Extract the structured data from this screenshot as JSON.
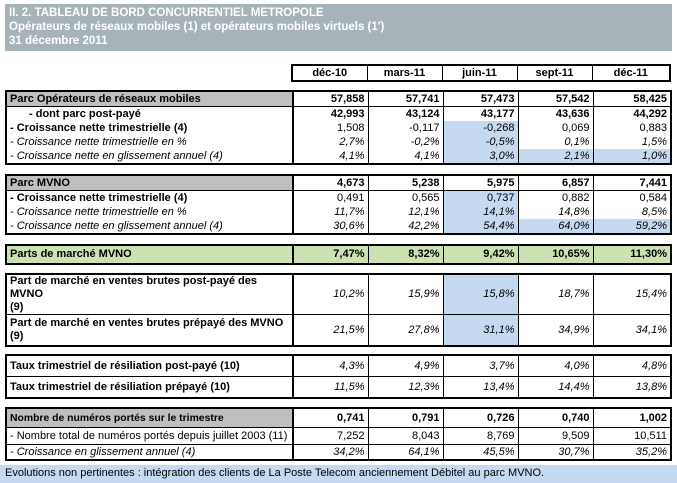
{
  "title": {
    "line1": "II. 2. TABLEAU DE BORD CONCURRENTIEL METROPOLE",
    "line2": "Opérateurs de réseaux mobiles (1) et opérateurs mobiles virtuels (1')",
    "line3": "31 décembre 2011"
  },
  "columns": [
    "déc-10",
    "mars-11",
    "juin-11",
    "sept-11",
    "déc-11"
  ],
  "colors": {
    "title_bg": "#a6b3b9",
    "label_header_bg": "#bfbfbf",
    "green_row_bg": "#cde2b2",
    "highlight_bg": "#c5d9f1",
    "footer_bg": "#c5d9f1"
  },
  "sections": [
    {
      "name": "parc-mobiles",
      "rows": [
        {
          "label": "Parc Opérateurs de réseaux mobiles",
          "label_class": "bold gray",
          "value_class": "bold",
          "values": [
            "57,858",
            "57,741",
            "57,473",
            "57,542",
            "58,425"
          ],
          "highlight": [],
          "border_bottom": true
        },
        {
          "label": "- dont parc post-payé",
          "label_class": "bold indent",
          "value_class": "bold",
          "values": [
            "42,993",
            "43,124",
            "43,177",
            "43,636",
            "44,292"
          ],
          "highlight": []
        },
        {
          "label": "- Croissance nette trimestrielle (4)",
          "label_class": "bold",
          "value_class": "",
          "values": [
            "1,508",
            "-0,117",
            "-0,268",
            "0,069",
            "0,883"
          ],
          "highlight": [
            2
          ]
        },
        {
          "label": "- Croissance nette trimestrielle en %",
          "label_class": "italic",
          "value_class": "italic",
          "values": [
            "2,7%",
            "-0,2%",
            "-0,5%",
            "0,1%",
            "1,5%"
          ],
          "highlight": [
            2
          ]
        },
        {
          "label": "- Croissance nette en glissement annuel (4)",
          "label_class": "italic",
          "value_class": "italic",
          "values": [
            "4,1%",
            "4,1%",
            "3,0%",
            "2,1%",
            "1,0%"
          ],
          "highlight": [
            2,
            3,
            4
          ]
        }
      ]
    },
    {
      "name": "parc-mvno",
      "rows": [
        {
          "label": "Parc MVNO",
          "label_class": "bold gray",
          "value_class": "bold",
          "values": [
            "4,673",
            "5,238",
            "5,975",
            "6,857",
            "7,441"
          ],
          "highlight": [],
          "border_bottom": true
        },
        {
          "label": "- Croissance nette trimestrielle (4)",
          "label_class": "bold",
          "value_class": "",
          "values": [
            "0,491",
            "0,565",
            "0,737",
            "0,882",
            "0,584"
          ],
          "highlight": [
            2
          ]
        },
        {
          "label": "- Croissance nette trimestrielle en %",
          "label_class": "italic",
          "value_class": "italic",
          "values": [
            "11,7%",
            "12,1%",
            "14,1%",
            "14,8%",
            "8,5%"
          ],
          "highlight": [
            2
          ]
        },
        {
          "label": "- Croissance nette en glissement annuel (4)",
          "label_class": "italic",
          "value_class": "italic",
          "values": [
            "30,6%",
            "42,2%",
            "54,4%",
            "64,0%",
            "59,2%"
          ],
          "highlight": [
            2,
            3,
            4
          ]
        }
      ]
    },
    {
      "name": "parts-marche",
      "rows": [
        {
          "label": "Parts de marché MVNO",
          "label_class": "bold",
          "value_class": "bold",
          "values": [
            "7,47%",
            "8,32%",
            "9,42%",
            "10,65%",
            "11,30%"
          ],
          "highlight": [],
          "row_bg": "green"
        }
      ]
    },
    {
      "name": "ventes-brutes",
      "rows": [
        {
          "label": "Part de marché en ventes brutes post-payé des MVNO\n(9)",
          "label_class": "bold",
          "value_class": "italic",
          "values": [
            "10,2%",
            "15,9%",
            "15,8%",
            "18,7%",
            "15,4%"
          ],
          "highlight": [
            2
          ],
          "border_bottom": true
        },
        {
          "label": "Part de marché en ventes brutes prépayé des MVNO\n(9)",
          "label_class": "bold",
          "value_class": "italic",
          "values": [
            "21,5%",
            "27,8%",
            "31,1%",
            "34,9%",
            "34,1%"
          ],
          "highlight": [
            2
          ]
        }
      ]
    },
    {
      "name": "resiliation",
      "rows": [
        {
          "label": "Taux trimestriel de résiliation post-payé (10)",
          "label_class": "bold",
          "value_class": "italic",
          "values": [
            "4,3%",
            "4,9%",
            "3,7%",
            "4,0%",
            "4,8%"
          ],
          "highlight": [],
          "border_bottom": true
        },
        {
          "label": "Taux trimestriel de résiliation prépayé (10)",
          "label_class": "bold",
          "value_class": "italic",
          "values": [
            "11,5%",
            "12,3%",
            "13,4%",
            "14,4%",
            "13,8%"
          ],
          "highlight": []
        }
      ]
    },
    {
      "name": "numeros-portes",
      "rows": [
        {
          "label": "Nombre de numéros portés sur le trimestre",
          "label_class": "bold gray",
          "value_class": "bold",
          "values": [
            "0,741",
            "0,791",
            "0,726",
            "0,740",
            "1,002"
          ],
          "highlight": [],
          "border_bottom": true
        },
        {
          "label": "- Nombre total de numéros portés depuis juillet 2003 (11)",
          "label_class": "",
          "value_class": "",
          "values": [
            "7,252",
            "8,043",
            "8,769",
            "9,509",
            "10,511"
          ],
          "highlight": [],
          "border_bottom": true
        },
        {
          "label": "- Croissance en glissement annuel (4)",
          "label_class": "italic",
          "value_class": "italic",
          "values": [
            "34,2%",
            "64,1%",
            "45,5%",
            "30,7%",
            "35,2%"
          ],
          "highlight": []
        }
      ]
    }
  ],
  "footer": "Evolutions non pertinentes : intégration des clients de La Poste Telecom anciennement Débitel au parc MVNO."
}
